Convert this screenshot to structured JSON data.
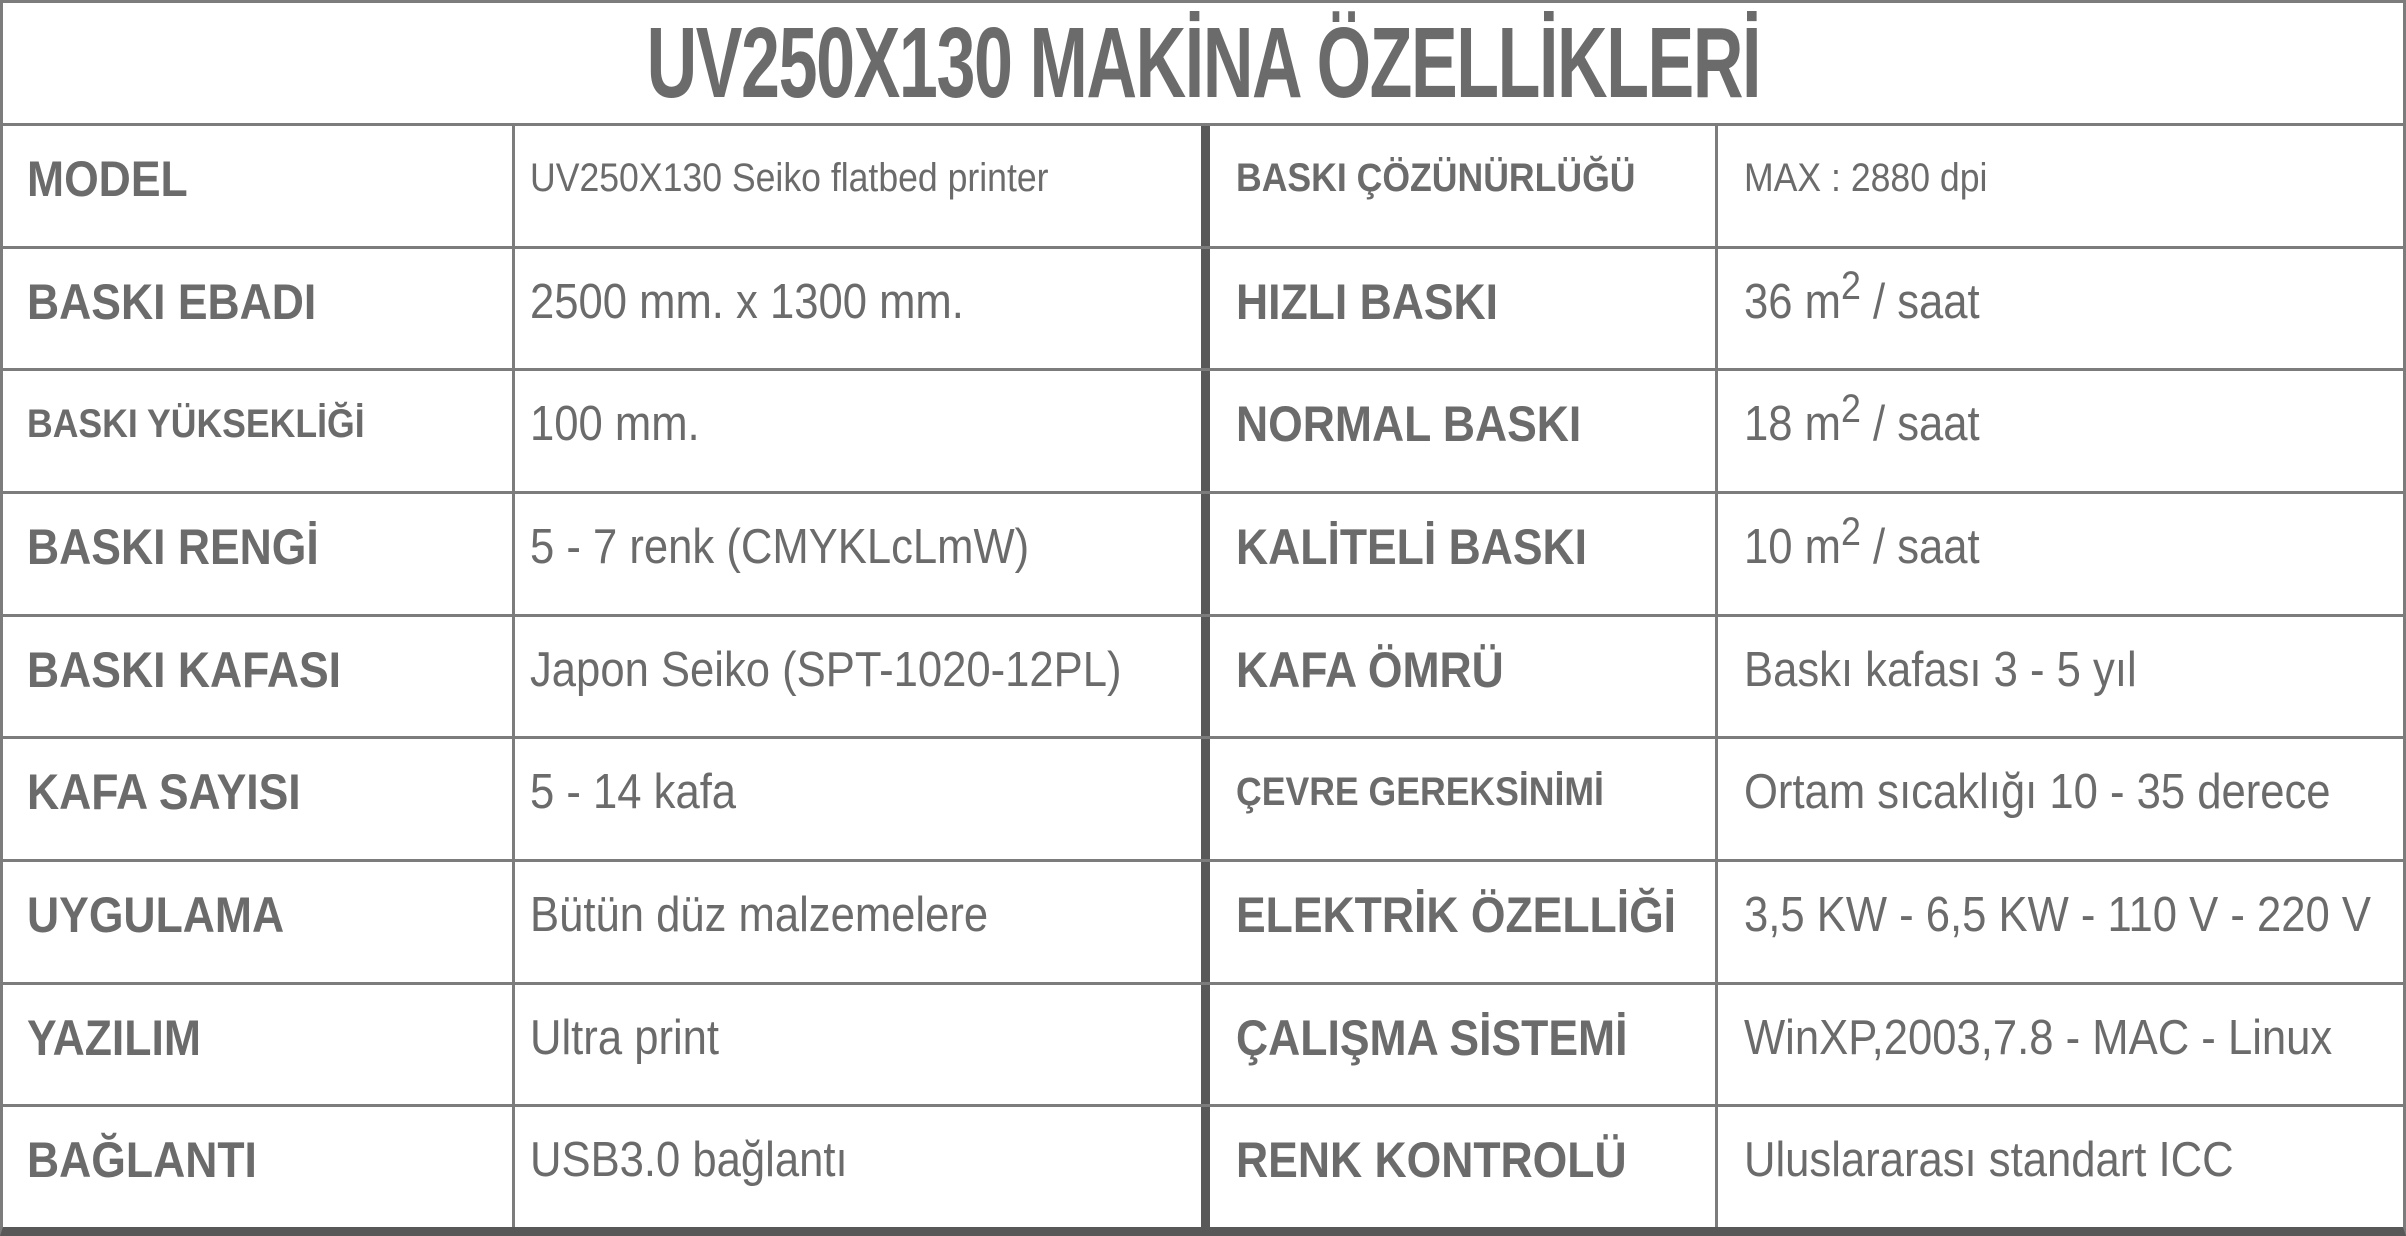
{
  "title": "UV250X130 MAKİNA ÖZELLİKLERİ",
  "colors": {
    "text_gray": "#6b6b6b",
    "thin_border": "#7c7c7c",
    "thick_divider": "#585858",
    "background": "#ffffff"
  },
  "rows": [
    {
      "left": {
        "label": "MODEL",
        "value": "UV250X130 Seiko flatbed printer"
      },
      "right": {
        "label": "BASKI ÇÖZÜNÜRLÜĞÜ",
        "value": "MAX : 2880 dpi"
      }
    },
    {
      "left": {
        "label": "BASKI EBADI",
        "value": "2500 mm. x 1300 mm."
      },
      "right": {
        "label": "HIZLI BASKI",
        "value": "36 m2 / saat"
      }
    },
    {
      "left": {
        "label": "BASKI YÜKSEKLİĞİ",
        "value": "100 mm."
      },
      "right": {
        "label": "NORMAL BASKI",
        "value": "18 m2 / saat"
      }
    },
    {
      "left": {
        "label": "BASKI RENGİ",
        "value": "5 - 7 renk (CMYKLcLmW)"
      },
      "right": {
        "label": "KALİTELİ BASKI",
        "value": "10 m2 / saat"
      }
    },
    {
      "left": {
        "label": "BASKI KAFASI",
        "value": "Japon Seiko (SPT-1020-12PL)"
      },
      "right": {
        "label": "KAFA ÖMRÜ",
        "value": "Baskı kafası 3 - 5 yıl"
      }
    },
    {
      "left": {
        "label": "KAFA SAYISI",
        "value": "5 - 14 kafa"
      },
      "right": {
        "label": "ÇEVRE GEREKSİNİMİ",
        "value": "Ortam sıcaklığı 10 - 35 derece"
      }
    },
    {
      "left": {
        "label": "UYGULAMA",
        "value": "Bütün düz malzemelere"
      },
      "right": {
        "label": "ELEKTRİK ÖZELLİĞİ",
        "value": "3,5 KW - 6,5 KW - 110 V - 220 V"
      }
    },
    {
      "left": {
        "label": "YAZILIM",
        "value": "Ultra print"
      },
      "right": {
        "label": "ÇALIŞMA SİSTEMİ",
        "value": "WinXP,2003,7.8 - MAC - Linux"
      }
    },
    {
      "left": {
        "label": "BAĞLANTI",
        "value": "USB3.0 bağlantı"
      },
      "right": {
        "label": "RENK KONTROLÜ",
        "value": "Uluslararası standart ICC"
      }
    }
  ]
}
